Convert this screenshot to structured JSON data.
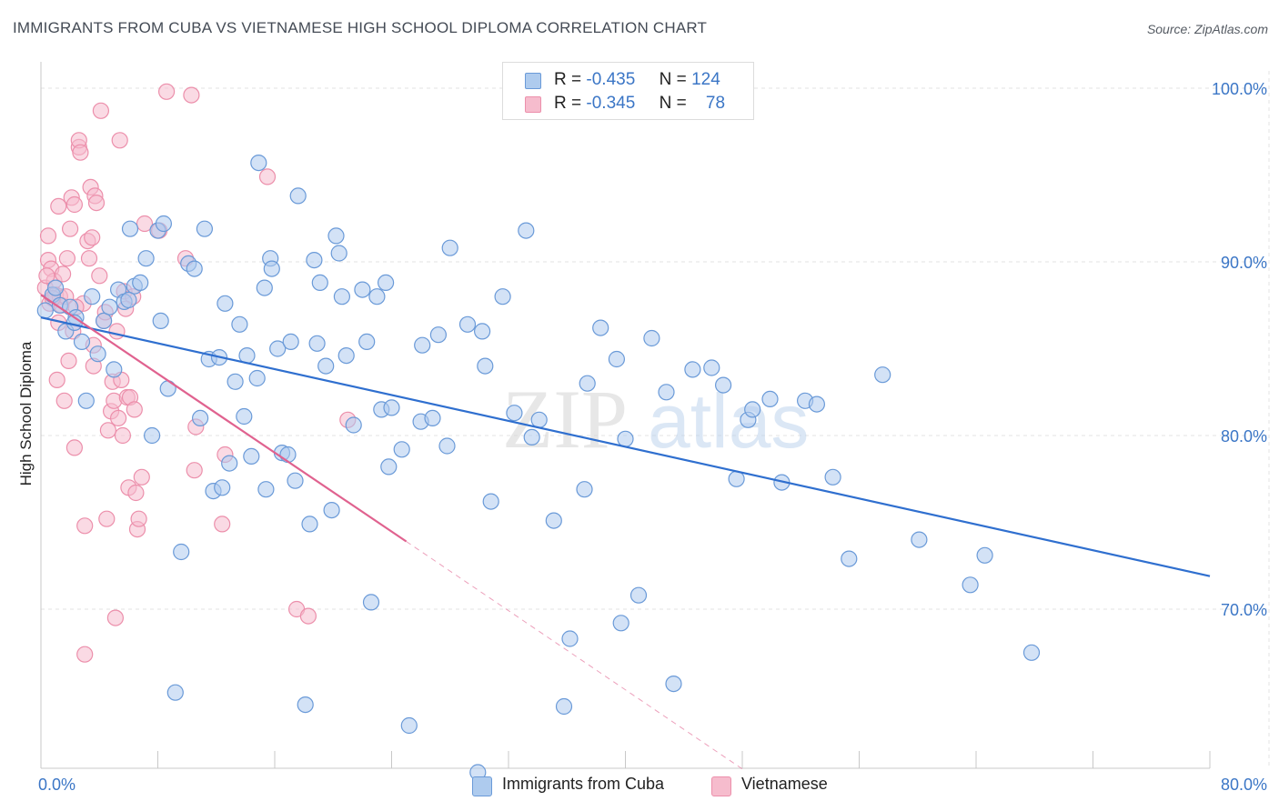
{
  "header": {
    "title": "IMMIGRANTS FROM CUBA VS VIETNAMESE HIGH SCHOOL DIPLOMA CORRELATION CHART",
    "source": "Source: ZipAtlas.com"
  },
  "legend": {
    "rows": [
      {
        "r_label": "R =",
        "r_value": "-0.435",
        "n_label": "N =",
        "n_value": "124"
      },
      {
        "r_label": "R =",
        "r_value": "-0.345",
        "n_label": "N =",
        "n_value": "78"
      }
    ]
  },
  "bottom_legend": {
    "items": [
      {
        "label": "Immigrants from Cuba"
      },
      {
        "label": "Vietnamese"
      }
    ]
  },
  "watermark": {
    "zip": "ZIP",
    "atlas": "atlas"
  },
  "colors": {
    "cuba_fill": "#aecbee",
    "cuba_stroke": "#6a9ad8",
    "cuba_line": "#2f6fcf",
    "viet_fill": "#f6bccd",
    "viet_stroke": "#ec8fab",
    "viet_line": "#e0628f",
    "grid": "#e3e3e3",
    "tick_label": "#3b76c6"
  },
  "chart_data": {
    "type": "scatter",
    "title": "IMMIGRANTS FROM CUBA VS VIETNAMESE HIGH SCHOOL DIPLOMA CORRELATION CHART",
    "xlabel": "",
    "ylabel": "High School Diploma",
    "xlim": [
      0,
      80
    ],
    "ylim": [
      60,
      102
    ],
    "x_tick_labels": [
      "0.0%",
      "80.0%"
    ],
    "y_ticks": [
      70,
      80,
      90,
      100
    ],
    "y_tick_labels": [
      "70.0%",
      "80.0%",
      "90.0%",
      "100.0%"
    ],
    "grid": true,
    "legend_position": "top-center",
    "series": [
      {
        "name": "Immigrants from Cuba",
        "r": -0.435,
        "n": 124,
        "trend": {
          "x": [
            0,
            80
          ],
          "y": [
            86.8,
            71.9
          ]
        },
        "points": [
          [
            0.3,
            87.2
          ],
          [
            0.8,
            88.1
          ],
          [
            1.3,
            87.5
          ],
          [
            1.7,
            86.0
          ],
          [
            2.0,
            87.4
          ],
          [
            2.4,
            86.8
          ],
          [
            2.8,
            85.4
          ],
          [
            3.1,
            82.0
          ],
          [
            3.5,
            88.0
          ],
          [
            3.9,
            84.7
          ],
          [
            4.3,
            86.6
          ],
          [
            4.7,
            87.4
          ],
          [
            5.0,
            83.8
          ],
          [
            5.3,
            88.4
          ],
          [
            5.7,
            87.7
          ],
          [
            6.1,
            91.9
          ],
          [
            6.4,
            88.6
          ],
          [
            6.8,
            88.8
          ],
          [
            7.2,
            90.2
          ],
          [
            7.6,
            80.0
          ],
          [
            8.0,
            91.8
          ],
          [
            8.2,
            86.6
          ],
          [
            8.4,
            92.2
          ],
          [
            8.7,
            82.7
          ],
          [
            9.2,
            65.2
          ],
          [
            9.6,
            73.3
          ],
          [
            10.1,
            89.9
          ],
          [
            10.5,
            89.6
          ],
          [
            10.9,
            81.0
          ],
          [
            11.2,
            91.9
          ],
          [
            11.5,
            84.4
          ],
          [
            11.8,
            76.8
          ],
          [
            12.2,
            84.5
          ],
          [
            12.4,
            77.0
          ],
          [
            12.6,
            87.6
          ],
          [
            12.9,
            78.4
          ],
          [
            13.3,
            83.1
          ],
          [
            13.6,
            86.4
          ],
          [
            13.9,
            81.1
          ],
          [
            14.1,
            84.6
          ],
          [
            14.4,
            78.8
          ],
          [
            14.9,
            95.7
          ],
          [
            15.3,
            88.5
          ],
          [
            15.4,
            76.9
          ],
          [
            15.7,
            90.2
          ],
          [
            15.8,
            89.6
          ],
          [
            16.2,
            85.0
          ],
          [
            16.5,
            79.0
          ],
          [
            16.9,
            78.9
          ],
          [
            17.1,
            85.4
          ],
          [
            17.4,
            77.4
          ],
          [
            17.6,
            93.8
          ],
          [
            18.1,
            64.5
          ],
          [
            18.4,
            74.9
          ],
          [
            18.7,
            90.1
          ],
          [
            18.9,
            85.3
          ],
          [
            19.1,
            88.8
          ],
          [
            19.5,
            84.0
          ],
          [
            19.9,
            75.7
          ],
          [
            20.2,
            91.5
          ],
          [
            20.4,
            90.5
          ],
          [
            20.6,
            88.0
          ],
          [
            20.9,
            84.6
          ],
          [
            21.4,
            80.6
          ],
          [
            22.0,
            88.4
          ],
          [
            22.3,
            85.4
          ],
          [
            22.6,
            70.4
          ],
          [
            23.0,
            88.0
          ],
          [
            23.3,
            81.5
          ],
          [
            23.6,
            88.8
          ],
          [
            23.8,
            78.2
          ],
          [
            24.0,
            81.6
          ],
          [
            24.7,
            79.2
          ],
          [
            25.2,
            63.3
          ],
          [
            26.0,
            80.8
          ],
          [
            26.8,
            81.0
          ],
          [
            27.2,
            85.8
          ],
          [
            27.8,
            79.4
          ],
          [
            28.0,
            90.8
          ],
          [
            29.2,
            86.4
          ],
          [
            29.9,
            60.6
          ],
          [
            30.2,
            86.0
          ],
          [
            30.4,
            84.0
          ],
          [
            30.8,
            76.2
          ],
          [
            31.6,
            88.0
          ],
          [
            32.4,
            81.3
          ],
          [
            33.2,
            91.8
          ],
          [
            33.6,
            79.9
          ],
          [
            34.1,
            80.9
          ],
          [
            35.1,
            75.1
          ],
          [
            35.8,
            64.4
          ],
          [
            36.2,
            68.3
          ],
          [
            37.4,
            83.0
          ],
          [
            38.3,
            86.2
          ],
          [
            39.4,
            84.4
          ],
          [
            39.7,
            69.2
          ],
          [
            40.0,
            79.8
          ],
          [
            40.9,
            70.8
          ],
          [
            41.8,
            85.6
          ],
          [
            42.8,
            82.5
          ],
          [
            43.3,
            65.7
          ],
          [
            44.6,
            83.8
          ],
          [
            45.9,
            83.9
          ],
          [
            46.7,
            82.9
          ],
          [
            47.6,
            77.5
          ],
          [
            48.4,
            80.9
          ],
          [
            48.7,
            81.5
          ],
          [
            49.9,
            82.1
          ],
          [
            50.7,
            77.3
          ],
          [
            52.3,
            82.0
          ],
          [
            53.1,
            81.8
          ],
          [
            54.2,
            77.6
          ],
          [
            55.3,
            72.9
          ],
          [
            57.6,
            83.5
          ],
          [
            60.1,
            74.0
          ],
          [
            63.6,
            71.4
          ],
          [
            64.6,
            73.1
          ],
          [
            67.8,
            67.5
          ],
          [
            1.0,
            88.5
          ],
          [
            6.0,
            87.8
          ],
          [
            2.3,
            86.5
          ],
          [
            14.8,
            83.3
          ],
          [
            26.1,
            85.2
          ],
          [
            37.2,
            76.9
          ]
        ]
      },
      {
        "name": "Vietnamese",
        "r": -0.345,
        "n": 78,
        "trend": {
          "x": [
            0,
            25
          ],
          "y": [
            88.1,
            73.9
          ]
        },
        "trend_dashed": {
          "x": [
            25,
            48
          ],
          "y": [
            73.9,
            60.8
          ]
        },
        "points": [
          [
            0.3,
            88.5
          ],
          [
            0.5,
            90.1
          ],
          [
            0.5,
            91.5
          ],
          [
            0.6,
            87.6
          ],
          [
            0.7,
            89.6
          ],
          [
            0.9,
            88.9
          ],
          [
            1.0,
            88.1
          ],
          [
            1.1,
            83.2
          ],
          [
            1.2,
            93.2
          ],
          [
            1.3,
            88.0
          ],
          [
            1.4,
            87.5
          ],
          [
            1.5,
            89.3
          ],
          [
            1.6,
            82.0
          ],
          [
            1.8,
            90.2
          ],
          [
            1.9,
            84.3
          ],
          [
            2.0,
            91.9
          ],
          [
            2.1,
            93.7
          ],
          [
            2.2,
            86.0
          ],
          [
            2.3,
            93.3
          ],
          [
            2.3,
            79.3
          ],
          [
            2.6,
            96.6
          ],
          [
            2.6,
            97.0
          ],
          [
            2.7,
            96.3
          ],
          [
            2.9,
            87.6
          ],
          [
            3.0,
            74.8
          ],
          [
            3.0,
            67.4
          ],
          [
            3.2,
            91.2
          ],
          [
            3.3,
            90.2
          ],
          [
            3.4,
            94.3
          ],
          [
            3.5,
            91.4
          ],
          [
            3.6,
            84.0
          ],
          [
            3.7,
            93.8
          ],
          [
            3.8,
            93.4
          ],
          [
            4.0,
            89.2
          ],
          [
            4.1,
            98.7
          ],
          [
            4.3,
            86.6
          ],
          [
            4.5,
            75.2
          ],
          [
            4.6,
            80.3
          ],
          [
            4.8,
            81.4
          ],
          [
            4.9,
            83.1
          ],
          [
            5.0,
            82.0
          ],
          [
            5.1,
            69.5
          ],
          [
            5.2,
            86.0
          ],
          [
            5.3,
            81.0
          ],
          [
            5.4,
            97.0
          ],
          [
            5.5,
            83.2
          ],
          [
            5.6,
            80.0
          ],
          [
            5.7,
            88.3
          ],
          [
            5.9,
            82.2
          ],
          [
            6.0,
            77.0
          ],
          [
            6.1,
            82.2
          ],
          [
            6.3,
            88.0
          ],
          [
            6.4,
            81.5
          ],
          [
            6.5,
            76.7
          ],
          [
            6.6,
            74.6
          ],
          [
            6.7,
            75.2
          ],
          [
            6.9,
            77.6
          ],
          [
            7.1,
            92.2
          ],
          [
            8.1,
            91.8
          ],
          [
            8.6,
            99.8
          ],
          [
            9.9,
            90.2
          ],
          [
            10.3,
            99.6
          ],
          [
            10.5,
            78.0
          ],
          [
            10.6,
            80.5
          ],
          [
            12.4,
            74.9
          ],
          [
            12.6,
            78.9
          ],
          [
            15.5,
            94.9
          ],
          [
            17.5,
            70.0
          ],
          [
            18.3,
            69.6
          ],
          [
            21.0,
            80.9
          ],
          [
            1.7,
            88.0
          ],
          [
            2.4,
            87.4
          ],
          [
            0.8,
            87.9
          ],
          [
            1.2,
            86.5
          ],
          [
            4.4,
            87.1
          ],
          [
            3.6,
            85.2
          ],
          [
            5.8,
            87.3
          ],
          [
            0.4,
            89.2
          ]
        ]
      }
    ]
  }
}
